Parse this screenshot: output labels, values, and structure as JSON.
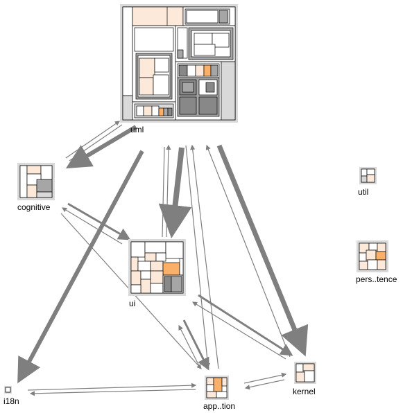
{
  "packages": [
    {
      "id": "uml",
      "label": "uml"
    },
    {
      "id": "cognitive",
      "label": "cognitive"
    },
    {
      "id": "util",
      "label": "util"
    },
    {
      "id": "persistence",
      "label": "pers..tence"
    },
    {
      "id": "ui",
      "label": "ui"
    },
    {
      "id": "i18n",
      "label": "i18n"
    },
    {
      "id": "application",
      "label": "app..tion"
    },
    {
      "id": "kernel",
      "label": "kernel"
    }
  ],
  "colors": {
    "frame": "#d9d9d9",
    "white": "#ffffff",
    "peach": "#fde9d9",
    "light_orange": "#fcd5b4",
    "orange": "#fab068",
    "gray": "#a6a6a6",
    "dark_gray": "#888888",
    "edge": "#7f7f7f"
  }
}
